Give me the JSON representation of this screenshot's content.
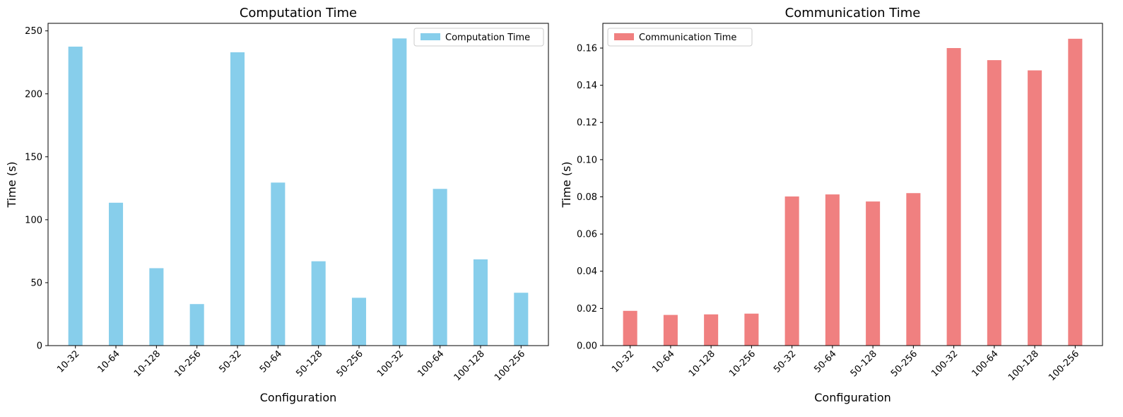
{
  "chart_data": [
    {
      "type": "bar",
      "title": "Computation Time",
      "xlabel": "Configuration",
      "ylabel": "Time (s)",
      "categories": [
        "10-32",
        "10-64",
        "10-128",
        "10-256",
        "50-32",
        "50-64",
        "50-128",
        "50-256",
        "100-32",
        "100-64",
        "100-128",
        "100-256"
      ],
      "series": [
        {
          "name": "Computation Time",
          "color": "#87CEEB",
          "values": [
            237.5,
            113.5,
            61.5,
            33.0,
            233.0,
            129.5,
            67.0,
            38.0,
            244.0,
            124.5,
            68.5,
            42.0
          ]
        }
      ],
      "ylim": [
        0,
        256
      ],
      "yticks": [
        0,
        50,
        100,
        150,
        200,
        250
      ],
      "ytick_labels": [
        "0",
        "50",
        "100",
        "150",
        "200",
        "250"
      ],
      "legend_position": "top-right",
      "grid": false
    },
    {
      "type": "bar",
      "title": "Communication Time",
      "xlabel": "Configuration",
      "ylabel": "Time (s)",
      "categories": [
        "10-32",
        "10-64",
        "10-128",
        "10-256",
        "50-32",
        "50-64",
        "50-128",
        "50-256",
        "100-32",
        "100-64",
        "100-128",
        "100-256"
      ],
      "series": [
        {
          "name": "Communication Time",
          "color": "#F08080",
          "values": [
            0.0187,
            0.0165,
            0.0168,
            0.0172,
            0.0802,
            0.0813,
            0.0775,
            0.082,
            0.16,
            0.1535,
            0.148,
            0.165
          ]
        }
      ],
      "ylim": [
        0,
        0.1733
      ],
      "yticks": [
        0.0,
        0.02,
        0.04,
        0.06,
        0.08,
        0.1,
        0.12,
        0.14,
        0.16
      ],
      "ytick_labels": [
        "0.00",
        "0.02",
        "0.04",
        "0.06",
        "0.08",
        "0.10",
        "0.12",
        "0.14",
        "0.16"
      ],
      "legend_position": "top-left",
      "grid": false
    }
  ]
}
